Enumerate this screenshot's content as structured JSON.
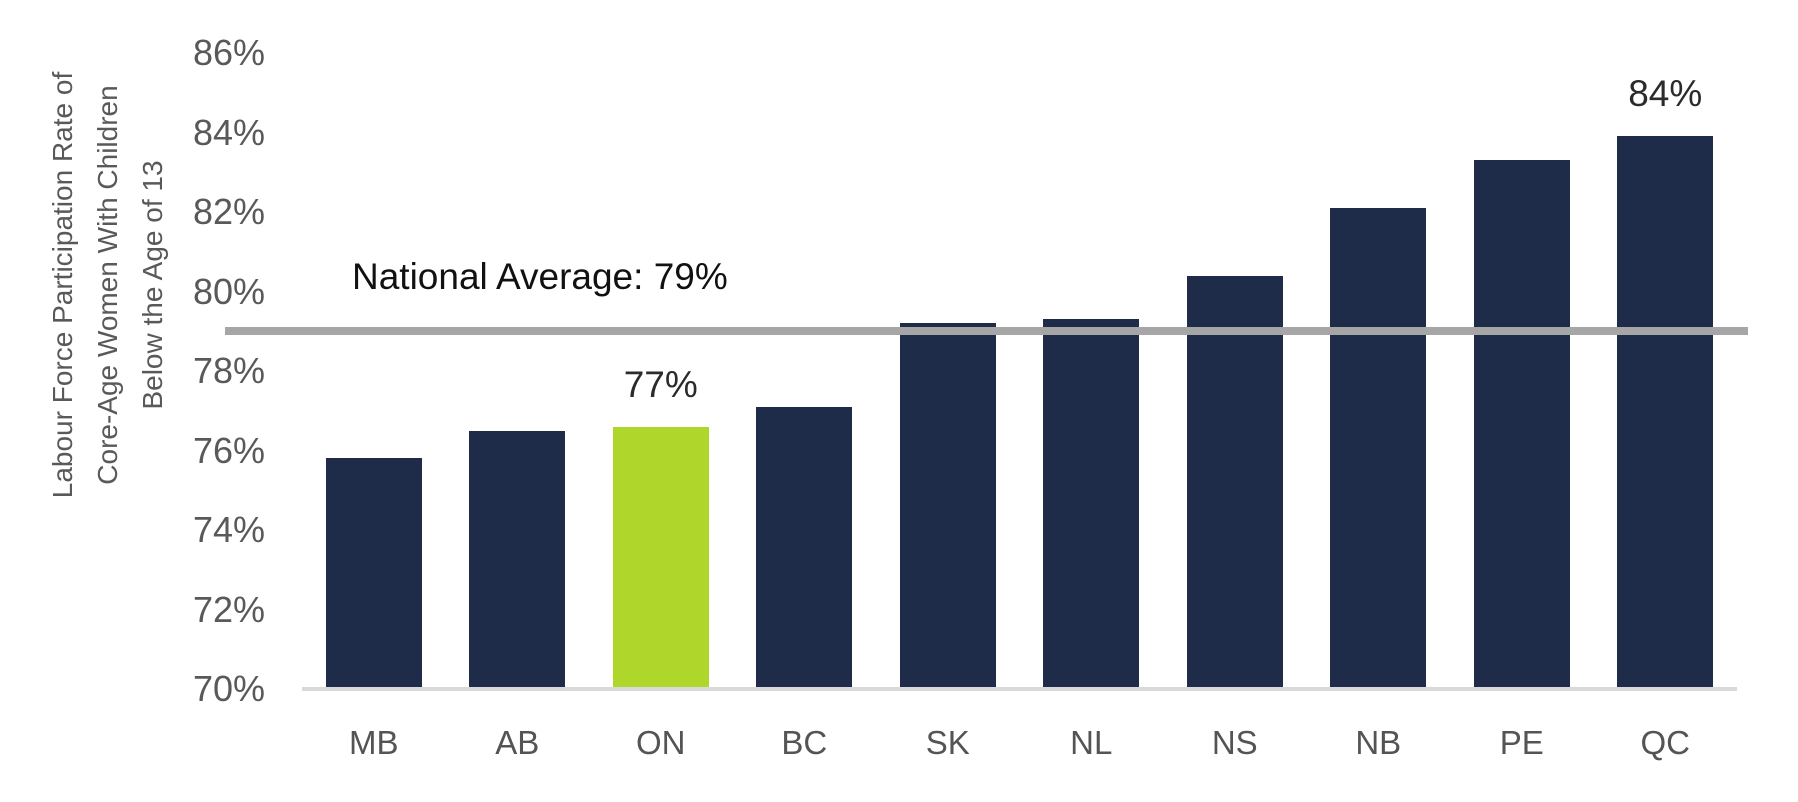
{
  "chart_data": {
    "type": "bar",
    "title": "",
    "ylabel_lines": [
      "Labour Force Participation Rate of",
      "Core-Age Women With Children",
      "Below the Age of 13"
    ],
    "categories": [
      "MB",
      "AB",
      "ON",
      "BC",
      "SK",
      "NL",
      "NS",
      "NB",
      "PE",
      "QC"
    ],
    "values": [
      75.8,
      76.5,
      76.6,
      77.1,
      79.2,
      79.3,
      80.4,
      82.1,
      83.3,
      83.9
    ],
    "bar_value_labels": [
      "",
      "",
      "77%",
      "",
      "",
      "",
      "",
      "",
      "",
      "84%"
    ],
    "highlighted_category": "ON",
    "national_average": {
      "value": 79,
      "label": "National Average: 79%"
    },
    "ylim": [
      70,
      86
    ],
    "y_tick_step": 2,
    "y_tick_labels": [
      "70%",
      "72%",
      "74%",
      "76%",
      "78%",
      "80%",
      "82%",
      "84%",
      "86%"
    ],
    "grid": false,
    "legend": false,
    "colors": {
      "bar": "#1E2B49",
      "highlight": "#AED62B",
      "average_line": "#A6A6A6",
      "axis_text": "#595959",
      "baseline": "#D9D9D9"
    }
  }
}
